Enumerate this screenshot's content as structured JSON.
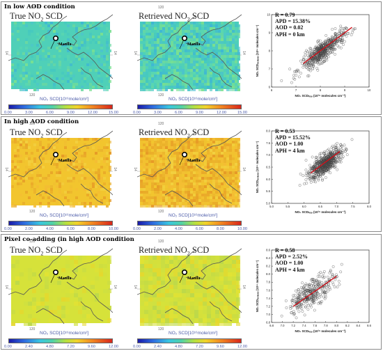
{
  "panels": [
    {
      "title": "In low AOD condition",
      "map_left_title": "True NO",
      "map_right_title": "Retrieved NO",
      "title_sub": "2",
      "title_suffix": " SCD",
      "city": "Manila",
      "lon_label": "120",
      "lat_label": "14",
      "colorbar_label": "NO₂ SCD[10¹⁶mole/cm²]",
      "colorbar_ticks": [
        "0.00",
        "3.00",
        "6.00",
        "9.00",
        "12.00",
        "15.00"
      ],
      "field_color": "#4fd0b8",
      "stats": {
        "R": "R = 0.79",
        "APD": "APD = 15.38%",
        "AOD": "AOD = 0.02",
        "APH": "APH = 0 km"
      }
    },
    {
      "title": "In high AOD condition",
      "map_left_title": "True NO",
      "map_right_title": "Retrieved NO",
      "title_sub": "2",
      "title_suffix": " SCD",
      "city": "Manila",
      "lon_label": "120",
      "lat_label": "14",
      "colorbar_label": "NO₂ SCD[10¹⁶mole/cm²]",
      "colorbar_ticks": [
        "0.00",
        "2.00",
        "4.00",
        "6.00",
        "8.00",
        "10.00"
      ],
      "field_color": "#f2c52e",
      "stats": {
        "R": "R = 0.53",
        "APD": "APD = 15.52%",
        "AOD": "AOD = 1.00",
        "APH": "APH = 4 km"
      }
    },
    {
      "title": "Pixel co-adding (in high AOD condition",
      "map_left_title": "True NO",
      "map_right_title": "Retrieved NO",
      "title_sub": "2",
      "title_suffix": " SCD",
      "city": "Manila",
      "lon_label": "120",
      "lat_label": "14",
      "colorbar_label": "NO₂ SCD[10¹⁶mole/cm²]",
      "colorbar_ticks": [
        "0.00",
        "2.40",
        "4.80",
        "7.20",
        "9.60",
        "12.00"
      ],
      "field_color": "#d6e23a",
      "stats": {
        "R": "R = 0.58",
        "APD": "APD = 2.52%",
        "AOD": "AOD = 1.00",
        "APH": "APH = 4 km"
      }
    }
  ],
  "chart_data": [
    {
      "type": "scatter",
      "xlabel": "NO₂ SCDₜᵣᵤₑ (10¹⁶ molecules cm⁻²)",
      "ylabel": "NO₂ SCDᵣₑₜᵣᵢₑᵥₑₔ (10¹⁶ molecules cm⁻²)",
      "xlim": [
        6,
        10
      ],
      "ylim": [
        6,
        10
      ],
      "xticks": [
        "6",
        "7",
        "8",
        "9",
        "10"
      ],
      "yticks": [
        "6",
        "7",
        "8",
        "9",
        "10"
      ],
      "cloud": {
        "cx": 8.1,
        "cy": 8.0,
        "sx": 0.45,
        "sy": 0.5,
        "n": 520,
        "slope": 1.0
      },
      "fit": {
        "x": [
          7.3,
          9.3
        ],
        "y": [
          7.3,
          9.3
        ]
      }
    },
    {
      "type": "scatter",
      "xlabel": "NO₂ SCDₜᵣᵤₑ (10¹⁶ molecules cm⁻²)",
      "ylabel": "NO₂ SCDᵣₑₜᵣᵢₑᵥₑₔ (10¹⁶ molecules cm⁻²)",
      "xlim": [
        5,
        8
      ],
      "ylim": [
        5,
        8
      ],
      "xticks": [
        "5.0",
        "5.5",
        "6.0",
        "6.5",
        "7.0",
        "7.5",
        "8.0"
      ],
      "yticks": [
        "5.0",
        "5.5",
        "6.0",
        "6.5",
        "7.0",
        "7.5",
        "8.0"
      ],
      "cloud": {
        "cx": 6.65,
        "cy": 6.65,
        "sx": 0.25,
        "sy": 0.38,
        "n": 600,
        "slope": 0.9
      },
      "fit": {
        "x": [
          6.2,
          7.1
        ],
        "y": [
          6.25,
          7.15
        ]
      }
    },
    {
      "type": "scatter",
      "xlabel": "NO₂ SCDₜᵣᵤₑ (10¹⁶ molecules cm⁻²)",
      "ylabel": "NO₂ SCDᵣₑₜᵣᵢₑᵥₑₔ (10¹⁶ molecules cm⁻²)",
      "xlim": [
        6.8,
        8.6
      ],
      "ylim": [
        6.8,
        8.6
      ],
      "xticks": [
        "6.8",
        "7.0",
        "7.2",
        "7.4",
        "7.6",
        "7.8",
        "8.0",
        "8.2",
        "8.4",
        "8.6"
      ],
      "yticks": [
        "6.8",
        "7.0",
        "7.2",
        "7.4",
        "7.6",
        "7.8",
        "8.0",
        "8.2",
        "8.4",
        "8.6"
      ],
      "cloud": {
        "cx": 7.55,
        "cy": 7.55,
        "sx": 0.22,
        "sy": 0.3,
        "n": 330,
        "slope": 0.85
      },
      "fit": {
        "x": [
          7.2,
          8.0
        ],
        "y": [
          7.2,
          7.95
        ]
      }
    }
  ]
}
